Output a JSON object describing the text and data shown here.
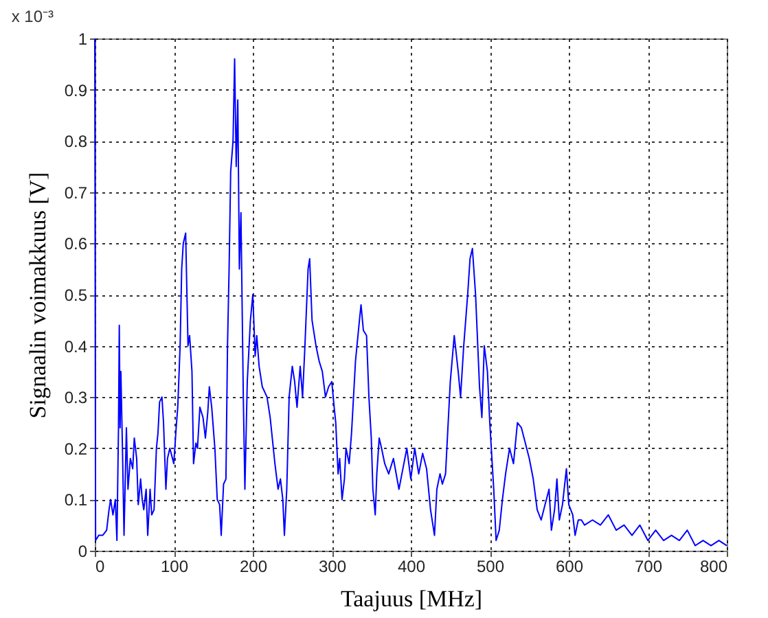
{
  "chart_data": {
    "type": "line",
    "xlabel": "Taajuus [MHz]",
    "ylabel": "Signaalin voimakkuus [V]",
    "annotations": [
      "x 10⁻³"
    ],
    "x": [
      0,
      1,
      5,
      10,
      15,
      18,
      20,
      23,
      26,
      28,
      30,
      31,
      32,
      33,
      35,
      37,
      40,
      42,
      45,
      48,
      50,
      53,
      55,
      58,
      60,
      62,
      65,
      67,
      70,
      72,
      75,
      78,
      80,
      82,
      85,
      87,
      90,
      92,
      95,
      100,
      103,
      105,
      108,
      110,
      112,
      115,
      118,
      120,
      123,
      125,
      128,
      130,
      133,
      137,
      140,
      143,
      145,
      148,
      152,
      155,
      158,
      160,
      163,
      166,
      168,
      170,
      172,
      175,
      177,
      179,
      181,
      183,
      185,
      188,
      190,
      193,
      197,
      200,
      203,
      205,
      208,
      212,
      218,
      222,
      228,
      232,
      235,
      238,
      240,
      243,
      246,
      250,
      253,
      256,
      260,
      263,
      266,
      270,
      272,
      275,
      280,
      284,
      288,
      292,
      296,
      300,
      303,
      305,
      308,
      310,
      313,
      316,
      318,
      322,
      325,
      330,
      335,
      337,
      340,
      344,
      347,
      350,
      352,
      355,
      357,
      360,
      363,
      367,
      372,
      378,
      385,
      390,
      395,
      400,
      405,
      410,
      415,
      420,
      425,
      430,
      433,
      437,
      440,
      444,
      450,
      455,
      460,
      463,
      467,
      472,
      475,
      478,
      482,
      487,
      490,
      493,
      497,
      500,
      505,
      508,
      512,
      516,
      520,
      525,
      530,
      535,
      540,
      545,
      550,
      555,
      560,
      565,
      570,
      575,
      578,
      582,
      585,
      588,
      592,
      597,
      600,
      605,
      608,
      612,
      616,
      620,
      630,
      640,
      650,
      660,
      670,
      680,
      690,
      700,
      710,
      720,
      730,
      740,
      750,
      760,
      770,
      780,
      790,
      800
    ],
    "series": [
      {
        "color": "#0000ff",
        "values": [
          1.0,
          0.02,
          0.03,
          0.03,
          0.04,
          0.08,
          0.1,
          0.07,
          0.1,
          0.02,
          0.24,
          0.44,
          0.24,
          0.35,
          0.2,
          0.03,
          0.24,
          0.12,
          0.18,
          0.16,
          0.22,
          0.18,
          0.09,
          0.14,
          0.1,
          0.08,
          0.12,
          0.03,
          0.12,
          0.07,
          0.08,
          0.2,
          0.23,
          0.29,
          0.3,
          0.25,
          0.12,
          0.18,
          0.2,
          0.17,
          0.24,
          0.28,
          0.4,
          0.55,
          0.6,
          0.62,
          0.4,
          0.42,
          0.35,
          0.17,
          0.21,
          0.2,
          0.28,
          0.26,
          0.22,
          0.27,
          0.32,
          0.28,
          0.2,
          0.1,
          0.09,
          0.03,
          0.13,
          0.14,
          0.4,
          0.55,
          0.74,
          0.8,
          0.96,
          0.75,
          0.88,
          0.55,
          0.66,
          0.3,
          0.12,
          0.33,
          0.45,
          0.5,
          0.38,
          0.42,
          0.36,
          0.32,
          0.3,
          0.26,
          0.17,
          0.12,
          0.14,
          0.1,
          0.03,
          0.12,
          0.3,
          0.36,
          0.33,
          0.28,
          0.36,
          0.3,
          0.4,
          0.55,
          0.57,
          0.45,
          0.4,
          0.37,
          0.35,
          0.3,
          0.32,
          0.33,
          0.28,
          0.25,
          0.15,
          0.18,
          0.1,
          0.14,
          0.2,
          0.17,
          0.23,
          0.37,
          0.45,
          0.48,
          0.43,
          0.42,
          0.3,
          0.22,
          0.12,
          0.07,
          0.15,
          0.22,
          0.2,
          0.17,
          0.15,
          0.18,
          0.12,
          0.16,
          0.2,
          0.14,
          0.2,
          0.15,
          0.19,
          0.16,
          0.08,
          0.03,
          0.12,
          0.15,
          0.13,
          0.15,
          0.33,
          0.42,
          0.35,
          0.3,
          0.4,
          0.5,
          0.57,
          0.59,
          0.5,
          0.32,
          0.26,
          0.4,
          0.35,
          0.25,
          0.12,
          0.02,
          0.04,
          0.1,
          0.15,
          0.2,
          0.17,
          0.25,
          0.24,
          0.21,
          0.18,
          0.14,
          0.08,
          0.06,
          0.09,
          0.12,
          0.04,
          0.08,
          0.14,
          0.06,
          0.09,
          0.16,
          0.09,
          0.07,
          0.03,
          0.06,
          0.06,
          0.05,
          0.06,
          0.05,
          0.07,
          0.04,
          0.05,
          0.03,
          0.05,
          0.02,
          0.04,
          0.02,
          0.03,
          0.02,
          0.04,
          0.01,
          0.02,
          0.01,
          0.02,
          0.01
        ]
      }
    ],
    "xlim": [
      0,
      800
    ],
    "xticks": [
      0,
      100,
      200,
      300,
      400,
      500,
      600,
      700,
      800
    ],
    "ylim": [
      0,
      1
    ],
    "yticks": [
      0,
      0.1,
      0.2,
      0.3,
      0.4,
      0.5,
      0.6,
      0.7,
      0.8,
      0.9,
      1
    ],
    "grid": true
  }
}
